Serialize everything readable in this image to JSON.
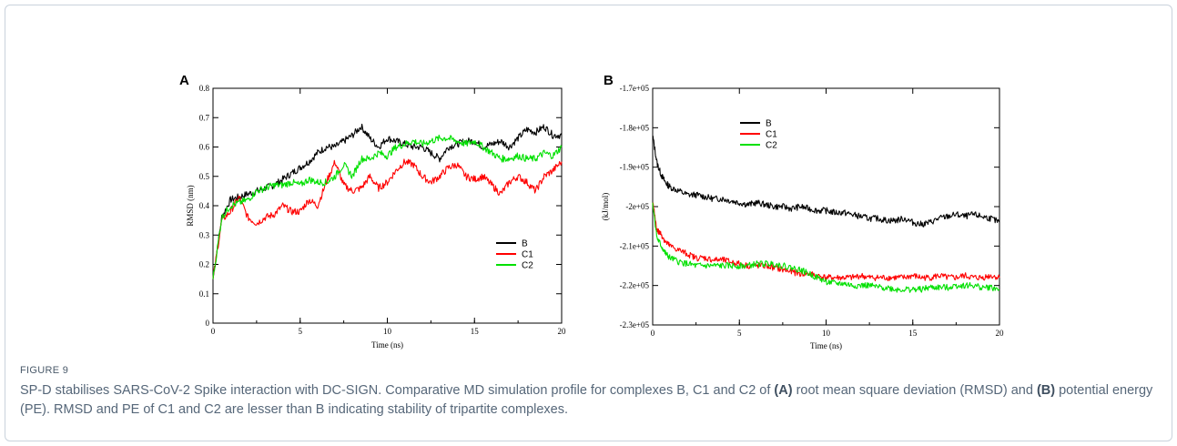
{
  "figure_label": "FIGURE 9",
  "caption": {
    "p1": "SP-D stabilises SARS-CoV-2 Spike interaction with DC-SIGN. Comparative MD simulation profile for complexes B, C1 and C2 of ",
    "b1": "(A)",
    "p2": " root mean square deviation (RMSD) and ",
    "b2": "(B)",
    "p3": " potential energy (PE). RMSD and PE of C1 and C2 are lesser than B indicating stability of tripartite complexes."
  },
  "colors": {
    "B": "#000000",
    "C1": "#ff0000",
    "C2": "#00e000"
  },
  "chart_data": [
    {
      "type": "line",
      "panel": "A",
      "xlabel": "Time (ns)",
      "ylabel": "RMSD (nm)",
      "xlim": [
        0,
        20
      ],
      "ylim": [
        0,
        0.8
      ],
      "xticks": [
        0,
        5,
        10,
        15,
        20
      ],
      "yticks": [
        0,
        0.1,
        0.2,
        0.3,
        0.4,
        0.5,
        0.6,
        0.7,
        0.8
      ],
      "legend": "lower-right",
      "grid": false,
      "x": [
        0,
        0.5,
        1,
        1.5,
        2,
        2.5,
        3,
        3.5,
        4,
        4.5,
        5,
        5.5,
        6,
        6.5,
        7,
        7.5,
        8,
        8.5,
        9,
        9.5,
        10,
        10.5,
        11,
        11.5,
        12,
        12.5,
        13,
        13.5,
        14,
        14.5,
        15,
        15.5,
        16,
        16.5,
        17,
        17.5,
        18,
        18.5,
        19,
        19.5,
        20
      ],
      "series": [
        {
          "name": "B",
          "values": [
            0.15,
            0.36,
            0.42,
            0.43,
            0.44,
            0.45,
            0.46,
            0.47,
            0.49,
            0.51,
            0.53,
            0.55,
            0.58,
            0.6,
            0.6,
            0.62,
            0.64,
            0.67,
            0.63,
            0.6,
            0.63,
            0.62,
            0.61,
            0.6,
            0.6,
            0.58,
            0.56,
            0.6,
            0.61,
            0.62,
            0.62,
            0.6,
            0.61,
            0.62,
            0.6,
            0.63,
            0.66,
            0.65,
            0.67,
            0.64,
            0.64
          ]
        },
        {
          "name": "C1",
          "values": [
            0.15,
            0.35,
            0.38,
            0.43,
            0.36,
            0.34,
            0.36,
            0.37,
            0.4,
            0.38,
            0.38,
            0.42,
            0.4,
            0.48,
            0.55,
            0.47,
            0.45,
            0.46,
            0.5,
            0.46,
            0.48,
            0.52,
            0.55,
            0.54,
            0.5,
            0.48,
            0.5,
            0.53,
            0.54,
            0.5,
            0.49,
            0.5,
            0.47,
            0.44,
            0.48,
            0.5,
            0.48,
            0.45,
            0.5,
            0.52,
            0.55
          ]
        },
        {
          "name": "C2",
          "values": [
            0.15,
            0.36,
            0.4,
            0.41,
            0.42,
            0.45,
            0.46,
            0.47,
            0.47,
            0.48,
            0.47,
            0.49,
            0.48,
            0.48,
            0.5,
            0.54,
            0.5,
            0.56,
            0.56,
            0.58,
            0.57,
            0.6,
            0.61,
            0.62,
            0.61,
            0.62,
            0.63,
            0.63,
            0.62,
            0.61,
            0.62,
            0.6,
            0.58,
            0.56,
            0.56,
            0.57,
            0.56,
            0.56,
            0.58,
            0.57,
            0.6
          ]
        }
      ]
    },
    {
      "type": "line",
      "panel": "B",
      "xlabel": "Time (ns)",
      "ylabel": "(kJ/mol)",
      "xlim": [
        0,
        20
      ],
      "ylim": [
        -230000,
        -170000
      ],
      "xticks": [
        0,
        5,
        10,
        15,
        20
      ],
      "yticks": [
        -230000,
        -220000,
        -210000,
        -200000,
        -190000,
        -180000,
        -170000
      ],
      "ytick_labels": [
        "-2.3e+05",
        "-2.2e+05",
        "-2.1e+05",
        "-2e+05",
        "-1.9e+05",
        "-1.8e+05",
        "-1.7e+05"
      ],
      "legend": "top-right",
      "grid": false,
      "x": [
        0,
        0.25,
        0.5,
        0.75,
        1,
        1.5,
        2,
        2.5,
        3,
        3.5,
        4,
        4.5,
        5,
        5.5,
        6,
        6.5,
        7,
        7.5,
        8,
        8.5,
        9,
        9.5,
        10,
        10.5,
        11,
        11.5,
        12,
        12.5,
        13,
        13.5,
        14,
        14.5,
        15,
        15.5,
        16,
        16.5,
        17,
        17.5,
        18,
        18.5,
        19,
        19.5,
        20
      ],
      "series": [
        {
          "name": "B",
          "values": [
            -182000,
            -189000,
            -192000,
            -194000,
            -195000,
            -196000,
            -197000,
            -197000,
            -197500,
            -198000,
            -198000,
            -198500,
            -199000,
            -199500,
            -199000,
            -199500,
            -200000,
            -200000,
            -200500,
            -200000,
            -200500,
            -201000,
            -201000,
            -201500,
            -201500,
            -202000,
            -202500,
            -203000,
            -203000,
            -203500,
            -203500,
            -203000,
            -204000,
            -204500,
            -204000,
            -203000,
            -202500,
            -202000,
            -202500,
            -202000,
            -202500,
            -203000,
            -204000
          ]
        },
        {
          "name": "C1",
          "values": [
            -199000,
            -206000,
            -207000,
            -209000,
            -210000,
            -211000,
            -212000,
            -213000,
            -213000,
            -213500,
            -213500,
            -214000,
            -214500,
            -215000,
            -215000,
            -215000,
            -215500,
            -216000,
            -216500,
            -217000,
            -217000,
            -217500,
            -218000,
            -218000,
            -218000,
            -218000,
            -217500,
            -218000,
            -218000,
            -218000,
            -218000,
            -218000,
            -217500,
            -218000,
            -218000,
            -217500,
            -218000,
            -218000,
            -217500,
            -218000,
            -218000,
            -217500,
            -218000
          ]
        },
        {
          "name": "C2",
          "values": [
            -199000,
            -208000,
            -210000,
            -212000,
            -213000,
            -214000,
            -214500,
            -215000,
            -215000,
            -215000,
            -215000,
            -215000,
            -215000,
            -215000,
            -214500,
            -214500,
            -214500,
            -215000,
            -215500,
            -216000,
            -217000,
            -218000,
            -219000,
            -219500,
            -219500,
            -220000,
            -220000,
            -220000,
            -220500,
            -220500,
            -221000,
            -221000,
            -221000,
            -221000,
            -220500,
            -220500,
            -220500,
            -220000,
            -220000,
            -220000,
            -220500,
            -220500,
            -221000
          ]
        }
      ]
    }
  ]
}
